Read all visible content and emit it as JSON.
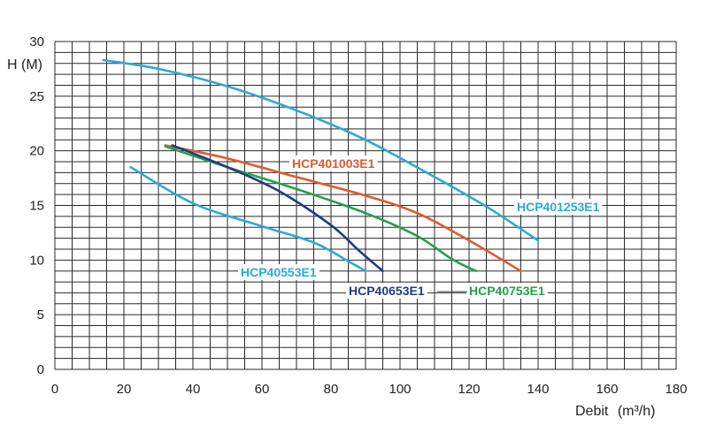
{
  "chart_data": {
    "type": "line",
    "title": "",
    "xlabel": "Debit",
    "xlabel_unit": "(m³/h)",
    "ylabel": "H (M)",
    "xlim": [
      0,
      180
    ],
    "ylim": [
      0,
      30
    ],
    "x_ticks": [
      "0",
      "20",
      "40",
      "60",
      "80",
      "100",
      "120",
      "140",
      "160",
      "180"
    ],
    "y_ticks": [
      "0",
      "5",
      "10",
      "15",
      "20",
      "25",
      "30"
    ],
    "grid": true,
    "series": [
      {
        "name": "HCP401253E1",
        "color": "#2aaad6",
        "points": [
          [
            14,
            28.3
          ],
          [
            30,
            27.5
          ],
          [
            50,
            25.9
          ],
          [
            70,
            23.7
          ],
          [
            90,
            21.0
          ],
          [
            110,
            17.6
          ],
          [
            125,
            14.9
          ],
          [
            140,
            11.8
          ]
        ]
      },
      {
        "name": "HCP401003E1",
        "color": "#e05a2f",
        "points": [
          [
            32,
            20.5
          ],
          [
            50,
            19.3
          ],
          [
            70,
            17.6
          ],
          [
            90,
            15.9
          ],
          [
            105,
            14.3
          ],
          [
            120,
            11.8
          ],
          [
            135,
            9.0
          ]
        ]
      },
      {
        "name": "HCP40753E1",
        "color": "#24a04a",
        "points": [
          [
            32,
            20.4
          ],
          [
            50,
            18.5
          ],
          [
            70,
            16.5
          ],
          [
            90,
            14.3
          ],
          [
            105,
            12.2
          ],
          [
            115,
            10.1
          ],
          [
            122,
            9.0
          ]
        ]
      },
      {
        "name": "HCP40653E1",
        "color": "#1f3b82",
        "points": [
          [
            34,
            20.5
          ],
          [
            50,
            18.5
          ],
          [
            65,
            16.3
          ],
          [
            80,
            13.2
          ],
          [
            88,
            10.9
          ],
          [
            95,
            9.0
          ]
        ]
      },
      {
        "name": "HCP40553E1",
        "color": "#2aaad6",
        "points": [
          [
            22,
            18.5
          ],
          [
            40,
            15.2
          ],
          [
            60,
            13.1
          ],
          [
            75,
            11.6
          ],
          [
            85,
            9.9
          ],
          [
            90,
            9.0
          ]
        ]
      }
    ]
  }
}
